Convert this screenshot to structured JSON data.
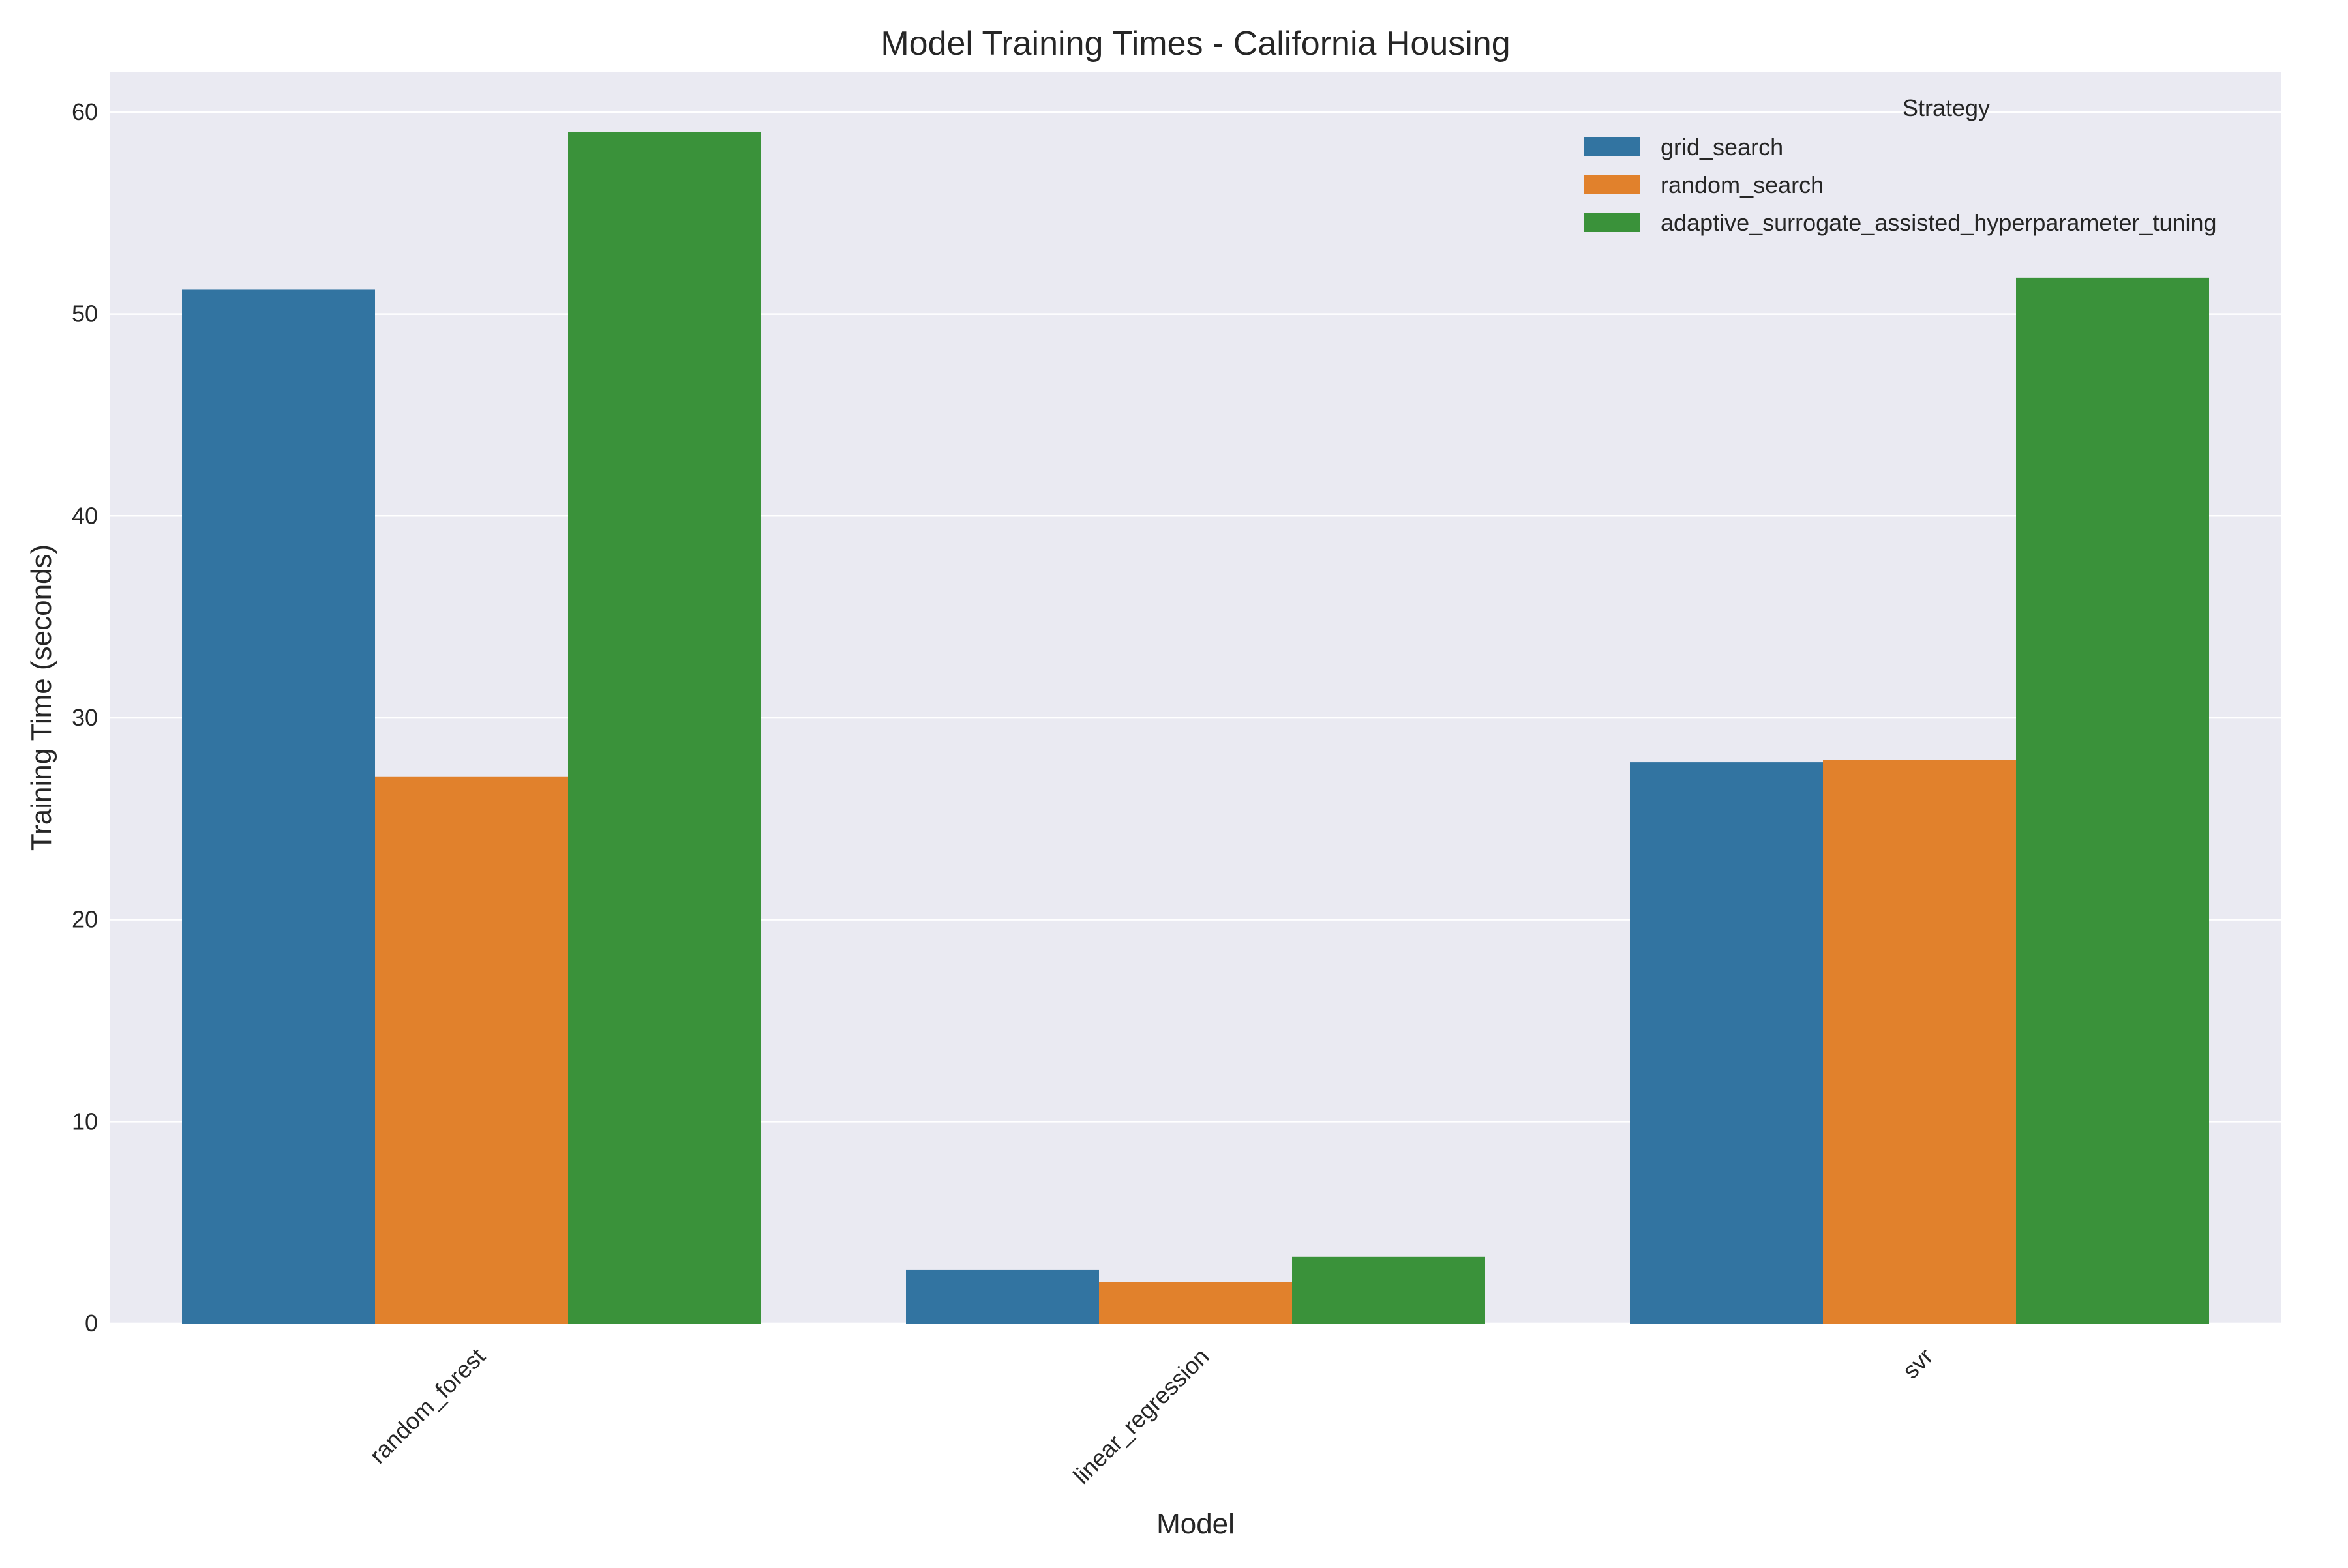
{
  "chart_data": {
    "type": "bar",
    "title": "Model Training Times - California Housing",
    "xlabel": "Model",
    "ylabel": "Training Time (seconds)",
    "categories": [
      "random_forest",
      "linear_regression",
      "svr"
    ],
    "series": [
      {
        "name": "grid_search",
        "color": "#3274a1",
        "values": [
          51.2,
          2.65,
          27.8
        ]
      },
      {
        "name": "random_search",
        "color": "#e1812c",
        "values": [
          27.1,
          2.05,
          27.9
        ]
      },
      {
        "name": "adaptive_surrogate_assisted_hyperparameter_tuning",
        "color": "#3a923a",
        "values": [
          59.0,
          3.3,
          51.8
        ]
      }
    ],
    "ylim": [
      0,
      62
    ],
    "yticks": [
      0,
      10,
      20,
      30,
      40,
      50,
      60
    ],
    "grid": true,
    "background_color": "#eaeaf2",
    "legend": {
      "title": "Strategy",
      "position": "top-right"
    }
  }
}
